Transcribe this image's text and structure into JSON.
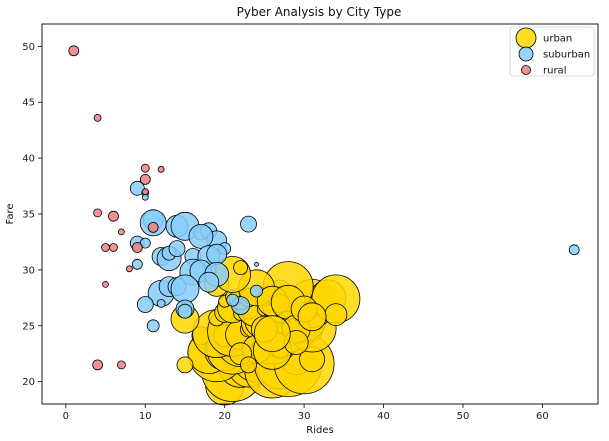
{
  "chart_data": {
    "type": "scatter",
    "title": "Pyber Analysis by City Type",
    "xlabel": "Rides",
    "ylabel": "Fare",
    "xlim": [
      -3,
      67
    ],
    "ylim": [
      18,
      52
    ],
    "xticks": [
      0,
      10,
      20,
      30,
      40,
      50,
      60
    ],
    "yticks": [
      20,
      25,
      30,
      35,
      40,
      45,
      50
    ],
    "grid": false,
    "legend": "top-right",
    "series": [
      {
        "name": "urban",
        "color": "#FFD700",
        "points": [
          [
            20,
            19.6,
            38
          ],
          [
            21,
            21,
            62
          ],
          [
            22,
            21.5,
            45
          ],
          [
            23,
            21.3,
            40
          ],
          [
            24,
            22.2,
            50
          ],
          [
            25,
            22,
            30
          ],
          [
            26,
            21,
            55
          ],
          [
            27,
            21.5,
            48
          ],
          [
            28,
            21.7,
            68
          ],
          [
            29,
            22.2,
            35
          ],
          [
            30,
            21.6,
            60
          ],
          [
            31,
            22,
            25
          ],
          [
            19,
            22.5,
            56
          ],
          [
            18,
            22.6,
            42
          ],
          [
            20,
            22.8,
            40
          ],
          [
            21,
            23,
            52
          ],
          [
            23,
            22.5,
            12
          ],
          [
            22,
            23.5,
            48
          ],
          [
            24,
            23.3,
            20
          ],
          [
            25,
            23.6,
            36
          ],
          [
            26,
            24,
            54
          ],
          [
            27,
            24.2,
            45
          ],
          [
            28,
            24.4,
            40
          ],
          [
            29,
            24.2,
            12
          ],
          [
            30,
            24,
            20
          ],
          [
            31,
            24.5,
            20
          ],
          [
            17,
            24.1,
            18
          ],
          [
            19,
            24.3,
            48
          ],
          [
            20,
            24.1,
            22
          ],
          [
            21,
            24.5,
            50
          ],
          [
            22,
            24.2,
            30
          ],
          [
            23,
            24.7,
            16
          ],
          [
            24,
            25.2,
            30
          ],
          [
            25,
            25.6,
            40
          ],
          [
            26,
            25,
            14
          ],
          [
            27,
            25.5,
            34
          ],
          [
            28,
            25,
            28
          ],
          [
            29,
            25.2,
            30
          ],
          [
            30,
            25.6,
            44
          ],
          [
            31,
            24.8,
            48
          ],
          [
            15,
            25.6,
            28
          ],
          [
            19,
            25.7,
            16
          ],
          [
            20,
            26.2,
            20
          ],
          [
            21,
            26.6,
            30
          ],
          [
            22,
            26.1,
            14
          ],
          [
            23,
            26.5,
            20
          ],
          [
            24,
            26.7,
            40
          ],
          [
            25,
            26.5,
            14
          ],
          [
            26,
            26.2,
            16
          ],
          [
            27,
            26.9,
            36
          ],
          [
            28,
            26.8,
            22
          ],
          [
            29,
            27,
            20
          ],
          [
            30,
            27.4,
            12
          ],
          [
            31,
            27,
            48
          ],
          [
            32,
            27.2,
            10
          ],
          [
            33,
            27.5,
            36
          ],
          [
            34,
            27.4,
            48
          ],
          [
            34,
            26,
            22
          ],
          [
            20,
            27.2,
            12
          ],
          [
            21,
            27.6,
            14
          ],
          [
            22,
            27.4,
            22
          ],
          [
            23,
            27.5,
            18
          ],
          [
            25,
            27.6,
            18
          ],
          [
            26,
            27.8,
            18
          ],
          [
            27,
            28.2,
            20
          ],
          [
            28,
            28.5,
            50
          ],
          [
            24,
            28.4,
            36
          ],
          [
            19,
            28.7,
            24
          ],
          [
            21,
            29.6,
            36
          ],
          [
            22,
            30.2,
            14
          ],
          [
            26,
            27.2,
            30
          ],
          [
            27,
            27,
            18
          ],
          [
            28,
            27.1,
            34
          ],
          [
            29,
            24.7,
            28
          ],
          [
            27,
            22.9,
            18
          ],
          [
            24,
            22.9,
            28
          ],
          [
            15,
            21.5,
            16
          ],
          [
            22,
            22.5,
            22
          ],
          [
            26,
            22.8,
            38
          ],
          [
            29,
            23.5,
            24
          ],
          [
            25,
            24.7,
            26
          ],
          [
            26,
            24.3,
            36
          ],
          [
            30,
            26.5,
            26
          ],
          [
            31,
            25.8,
            28
          ],
          [
            23,
            21.5,
            16
          ]
        ]
      },
      {
        "name": "suburban",
        "color": "#87CEFA",
        "points": [
          [
            64,
            31.8,
            10
          ],
          [
            9,
            37.3,
            14
          ],
          [
            10,
            36.9,
            7
          ],
          [
            10,
            36.5,
            6
          ],
          [
            11,
            34.5,
            20
          ],
          [
            11,
            34.2,
            26
          ],
          [
            14,
            33.9,
            22
          ],
          [
            15,
            33.9,
            28
          ],
          [
            17,
            33.3,
            14
          ],
          [
            18,
            33.5,
            16
          ],
          [
            19,
            32.6,
            20
          ],
          [
            20,
            31.9,
            12
          ],
          [
            23,
            34.1,
            16
          ],
          [
            9,
            32.4,
            14
          ],
          [
            10,
            32.4,
            10
          ],
          [
            12,
            31.2,
            18
          ],
          [
            13,
            31,
            24
          ],
          [
            13,
            31.5,
            14
          ],
          [
            14,
            31.9,
            16
          ],
          [
            16,
            31.2,
            16
          ],
          [
            17,
            33,
            24
          ],
          [
            18,
            31.2,
            22
          ],
          [
            19,
            31.4,
            20
          ],
          [
            9,
            30.5,
            10
          ],
          [
            16,
            29.8,
            26
          ],
          [
            17,
            29.9,
            22
          ],
          [
            19,
            29.6,
            24
          ],
          [
            12,
            27.9,
            26
          ],
          [
            13,
            28.5,
            20
          ],
          [
            14,
            28.5,
            18
          ],
          [
            15,
            28.3,
            28
          ],
          [
            18,
            28.9,
            20
          ],
          [
            10,
            26.9,
            16
          ],
          [
            12,
            27,
            8
          ],
          [
            15,
            26.5,
            18
          ],
          [
            15,
            26.3,
            14
          ],
          [
            11,
            25,
            12
          ],
          [
            22,
            26.8,
            18
          ],
          [
            21,
            27.3,
            12
          ],
          [
            24,
            28.1,
            12
          ],
          [
            24,
            30.5,
            4
          ]
        ]
      },
      {
        "name": "rural",
        "color": "#F08080",
        "points": [
          [
            1,
            49.6,
            10
          ],
          [
            4,
            43.6,
            7
          ],
          [
            10,
            39.1,
            8
          ],
          [
            12,
            39,
            6
          ],
          [
            10,
            38.1,
            10
          ],
          [
            10,
            37,
            6
          ],
          [
            4,
            35.1,
            8
          ],
          [
            6,
            34.8,
            10
          ],
          [
            11,
            33.8,
            10
          ],
          [
            7,
            33.4,
            6
          ],
          [
            5,
            32,
            8
          ],
          [
            6,
            32,
            8
          ],
          [
            9,
            32,
            10
          ],
          [
            8,
            30.1,
            6
          ],
          [
            5,
            28.7,
            6
          ],
          [
            4,
            21.5,
            10
          ],
          [
            7,
            21.5,
            8
          ]
        ]
      }
    ]
  }
}
